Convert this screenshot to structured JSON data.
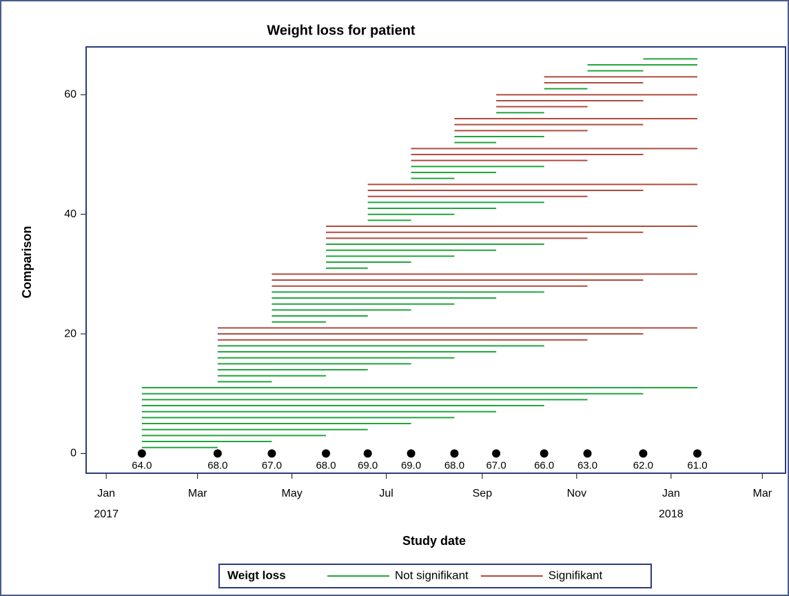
{
  "chart_data": {
    "type": "segments",
    "title": "Weight loss for patient",
    "x_label": "Study date",
    "y_label": "Comparison",
    "legend_title": "Weigt loss",
    "xlim": [
      "2016-12-19",
      "2018-03-16"
    ],
    "xticks": [
      {
        "value": "2017-01-01",
        "label": "Jan",
        "year": "2017"
      },
      {
        "value": "2017-03-01",
        "label": "Mar"
      },
      {
        "value": "2017-05-01",
        "label": "May"
      },
      {
        "value": "2017-07-01",
        "label": "Jul"
      },
      {
        "value": "2017-09-01",
        "label": "Sep"
      },
      {
        "value": "2017-11-01",
        "label": "Nov"
      },
      {
        "value": "2018-01-01",
        "label": "Jan",
        "year": "2018"
      },
      {
        "value": "2018-03-01",
        "label": "Mar"
      }
    ],
    "ylim": [
      -3.3,
      68
    ],
    "yticks": [
      0,
      20,
      40,
      60
    ],
    "markers": {
      "color": "#000000",
      "x": [
        "2017-01-24",
        "2017-03-14",
        "2017-04-18",
        "2017-05-23",
        "2017-06-19",
        "2017-07-17",
        "2017-08-14",
        "2017-09-10",
        "2017-10-11",
        "2017-11-08",
        "2017-12-14",
        "2018-01-18"
      ],
      "y": [
        0,
        0,
        0,
        0,
        0,
        0,
        0,
        0,
        0,
        0,
        0,
        0
      ],
      "labels": [
        "64.0",
        "68.0",
        "67.0",
        "68.0",
        "69.0",
        "69.0",
        "68.0",
        "67.0",
        "66.0",
        "63.0",
        "62.0",
        "61.0"
      ]
    },
    "series": [
      {
        "name": "Not signifikant",
        "color": "#1fa53c",
        "values": [
          1,
          2,
          3,
          4,
          5,
          6,
          7,
          8,
          9,
          10,
          11,
          12,
          13,
          14,
          15,
          16,
          17,
          18,
          22,
          23,
          24,
          25,
          26,
          27,
          31,
          32,
          33,
          34,
          35,
          39,
          40,
          41,
          42,
          46,
          47,
          48,
          52,
          53,
          57,
          61,
          64,
          65,
          66
        ],
        "x_start": [
          "2017-01-24",
          "2017-01-24",
          "2017-01-24",
          "2017-01-24",
          "2017-01-24",
          "2017-01-24",
          "2017-01-24",
          "2017-01-24",
          "2017-01-24",
          "2017-01-24",
          "2017-01-24",
          "2017-03-14",
          "2017-03-14",
          "2017-03-14",
          "2017-03-14",
          "2017-03-14",
          "2017-03-14",
          "2017-03-14",
          "2017-04-18",
          "2017-04-18",
          "2017-04-18",
          "2017-04-18",
          "2017-04-18",
          "2017-04-18",
          "2017-05-23",
          "2017-05-23",
          "2017-05-23",
          "2017-05-23",
          "2017-05-23",
          "2017-06-19",
          "2017-06-19",
          "2017-06-19",
          "2017-06-19",
          "2017-07-17",
          "2017-07-17",
          "2017-07-17",
          "2017-08-14",
          "2017-08-14",
          "2017-09-10",
          "2017-10-11",
          "2017-11-08",
          "2017-11-08",
          "2017-12-14"
        ],
        "x_end": [
          "2017-03-14",
          "2017-04-18",
          "2017-05-23",
          "2017-06-19",
          "2017-07-17",
          "2017-08-14",
          "2017-09-10",
          "2017-10-11",
          "2017-11-08",
          "2017-12-14",
          "2018-01-18",
          "2017-04-18",
          "2017-05-23",
          "2017-06-19",
          "2017-07-17",
          "2017-08-14",
          "2017-09-10",
          "2017-10-11",
          "2017-05-23",
          "2017-06-19",
          "2017-07-17",
          "2017-08-14",
          "2017-09-10",
          "2017-10-11",
          "2017-06-19",
          "2017-07-17",
          "2017-08-14",
          "2017-09-10",
          "2017-10-11",
          "2017-07-17",
          "2017-08-14",
          "2017-09-10",
          "2017-10-11",
          "2017-08-14",
          "2017-09-10",
          "2017-10-11",
          "2017-09-10",
          "2017-10-11",
          "2017-10-11",
          "2017-11-08",
          "2017-12-14",
          "2018-01-18",
          "2018-01-18"
        ]
      },
      {
        "name": "Signifikant",
        "color": "#b04a3c",
        "values": [
          19,
          20,
          21,
          28,
          29,
          30,
          36,
          37,
          38,
          43,
          44,
          45,
          49,
          50,
          51,
          54,
          55,
          56,
          58,
          59,
          60,
          62,
          63
        ],
        "x_start": [
          "2017-03-14",
          "2017-03-14",
          "2017-03-14",
          "2017-04-18",
          "2017-04-18",
          "2017-04-18",
          "2017-05-23",
          "2017-05-23",
          "2017-05-23",
          "2017-06-19",
          "2017-06-19",
          "2017-06-19",
          "2017-07-17",
          "2017-07-17",
          "2017-07-17",
          "2017-08-14",
          "2017-08-14",
          "2017-08-14",
          "2017-09-10",
          "2017-09-10",
          "2017-09-10",
          "2017-10-11",
          "2017-10-11"
        ],
        "x_end": [
          "2017-11-08",
          "2017-12-14",
          "2018-01-18",
          "2017-11-08",
          "2017-12-14",
          "2018-01-18",
          "2017-11-08",
          "2017-12-14",
          "2018-01-18",
          "2017-11-08",
          "2017-12-14",
          "2018-01-18",
          "2017-11-08",
          "2017-12-14",
          "2018-01-18",
          "2017-11-08",
          "2017-12-14",
          "2018-01-18",
          "2017-11-08",
          "2017-12-14",
          "2018-01-18",
          "2017-12-14",
          "2018-01-18"
        ]
      }
    ]
  }
}
